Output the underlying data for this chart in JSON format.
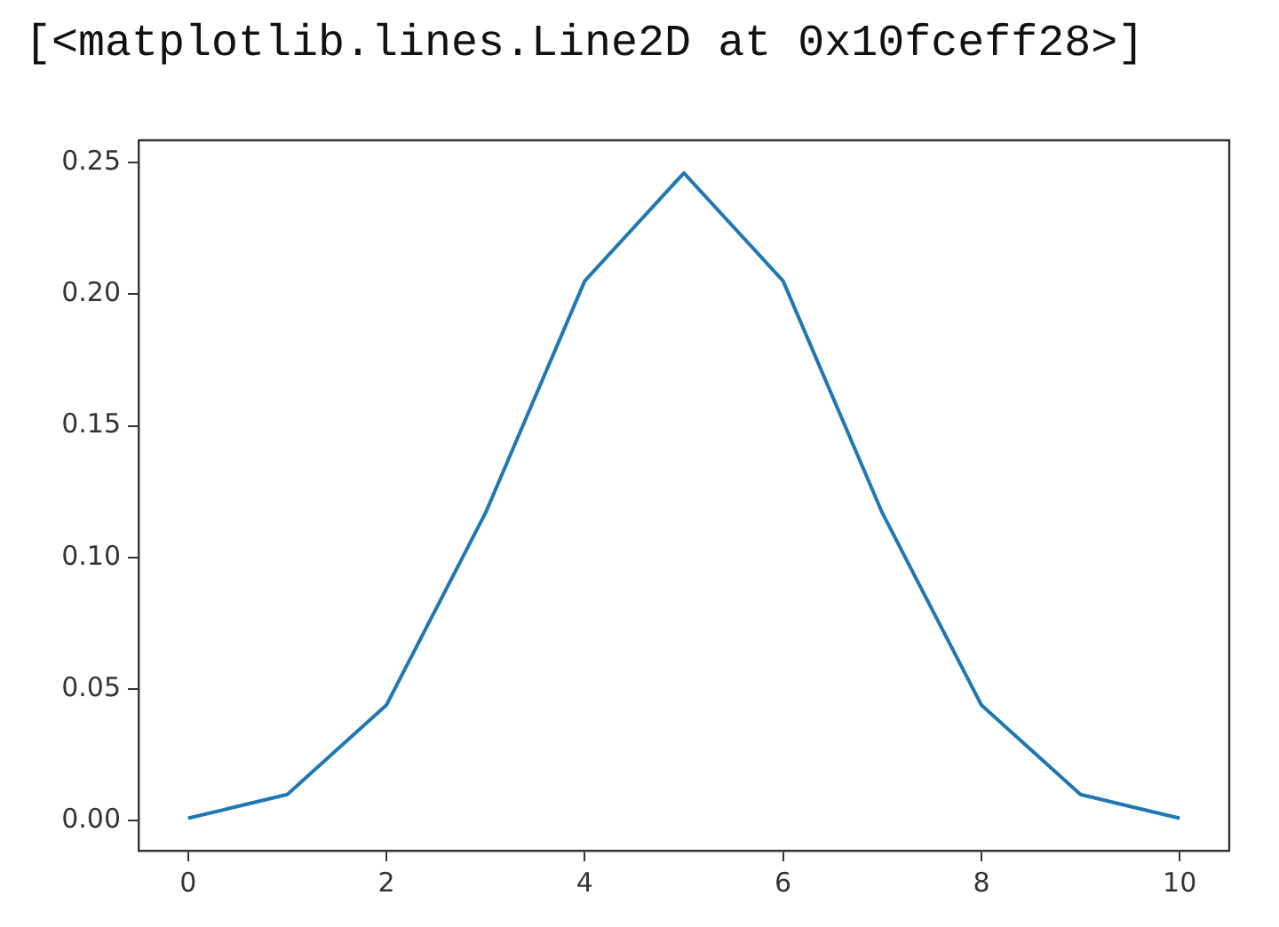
{
  "chart_data": {
    "type": "line",
    "annotations": [
      "[<matplotlib.lines.Line2D at 0x10fceff28>]"
    ],
    "x": [
      0,
      1,
      2,
      3,
      4,
      5,
      6,
      7,
      8,
      9,
      10
    ],
    "series": [
      {
        "color": "#1f77b4",
        "values": [
          0.001,
          0.01,
          0.044,
          0.117,
          0.205,
          0.246,
          0.205,
          0.117,
          0.044,
          0.01,
          0.001
        ]
      }
    ],
    "xlim": [
      -0.5,
      10.5
    ],
    "xticks": [
      0,
      2,
      4,
      6,
      8,
      10
    ],
    "ylim": [
      -0.0113,
      0.2584
    ],
    "yticks": [
      {
        "value": 0,
        "label": "0.00"
      },
      {
        "value": 0.05,
        "label": "0.05"
      },
      {
        "value": 0.1,
        "label": "0.10"
      },
      {
        "value": 0.15,
        "label": "0.15"
      },
      {
        "value": 0.2,
        "label": "0.20"
      },
      {
        "value": 0.25,
        "label": "0.25"
      }
    ],
    "grid": false
  }
}
